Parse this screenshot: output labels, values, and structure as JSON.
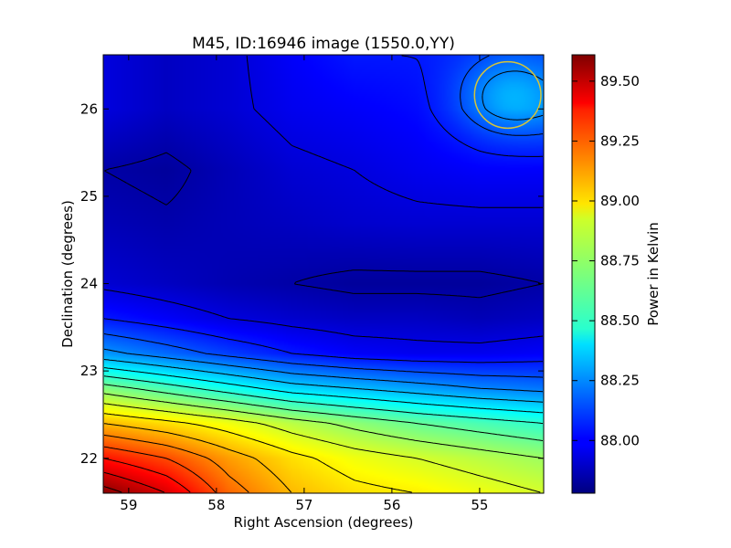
{
  "chart_data": {
    "type": "heatmap",
    "title": "M45, ID:16946 image (1550.0,YY)",
    "xlabel": "Right Ascension (degrees)",
    "ylabel": "Declination (degrees)",
    "colorbar_label": "Power in Kelvin",
    "colormap": "jet",
    "xlim": [
      59.29,
      54.27
    ],
    "ylim": [
      21.6,
      26.62
    ],
    "x_ticks": [
      59,
      58,
      57,
      56,
      55
    ],
    "y_ticks": [
      22,
      23,
      24,
      25,
      26
    ],
    "colorbar_range": [
      87.78,
      89.61
    ],
    "colorbar_ticks": [
      "88.00",
      "88.25",
      "88.50",
      "88.75",
      "89.00",
      "89.25",
      "89.50"
    ],
    "field_samples": [
      {
        "dec": 26.62,
        "values": [
          87.95,
          87.9,
          87.93,
          88.0,
          88.05,
          88.05,
          88.08,
          88.12
        ]
      },
      {
        "dec": 26.0,
        "values": [
          87.95,
          87.9,
          87.93,
          87.98,
          88.0,
          88.02,
          88.1,
          88.18
        ]
      },
      {
        "dec": 25.3,
        "values": [
          87.85,
          87.83,
          87.88,
          87.93,
          87.95,
          87.98,
          88.0,
          88.0
        ]
      },
      {
        "dec": 24.7,
        "values": [
          87.88,
          87.86,
          87.88,
          87.9,
          87.92,
          87.93,
          87.93,
          87.93
        ]
      },
      {
        "dec": 24.0,
        "values": [
          87.93,
          87.9,
          87.87,
          87.85,
          87.83,
          87.83,
          87.83,
          87.85
        ]
      },
      {
        "dec": 23.6,
        "values": [
          88.05,
          88.0,
          87.95,
          87.92,
          87.9,
          87.9,
          87.88,
          87.9
        ]
      },
      {
        "dec": 23.2,
        "values": [
          88.28,
          88.2,
          88.12,
          88.05,
          88.0,
          87.98,
          87.98,
          88.0
        ]
      },
      {
        "dec": 22.8,
        "values": [
          88.7,
          88.6,
          88.5,
          88.4,
          88.35,
          88.3,
          88.25,
          88.22
        ]
      },
      {
        "dec": 22.4,
        "values": [
          89.05,
          88.98,
          88.9,
          88.8,
          88.72,
          88.65,
          88.6,
          88.55
        ]
      },
      {
        "dec": 22.0,
        "values": [
          89.35,
          89.25,
          89.1,
          88.98,
          88.9,
          88.85,
          88.8,
          88.75
        ]
      },
      {
        "dec": 21.6,
        "values": [
          89.6,
          89.45,
          89.2,
          89.05,
          88.98,
          88.95,
          88.9,
          88.85
        ]
      }
    ],
    "field_sample_ra": [
      59.29,
      58.57,
      57.86,
      57.14,
      56.43,
      55.71,
      55.0,
      54.27
    ],
    "contour_levels": [
      87.85,
      87.95,
      88.05,
      88.15,
      88.25,
      88.35,
      88.45,
      88.55,
      88.65,
      88.75,
      88.85,
      88.95,
      89.05,
      89.15,
      89.25,
      89.35,
      89.45,
      89.55
    ],
    "beam_marker": {
      "ra": 54.68,
      "dec": 26.16,
      "radius_deg": 0.38,
      "color": "#d4c43a"
    }
  }
}
